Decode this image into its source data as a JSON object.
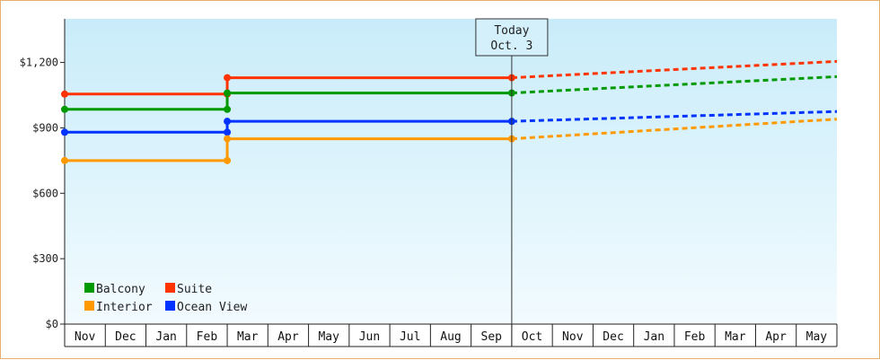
{
  "chart_data": {
    "type": "line",
    "title": "",
    "xlabel": "",
    "ylabel": "",
    "ylim": [
      0,
      1400
    ],
    "y_ticks": [
      0,
      300,
      600,
      900,
      1200
    ],
    "y_tick_labels": [
      "$0",
      "$300",
      "$600",
      "$900",
      "$1,200"
    ],
    "months": [
      "Nov",
      "Dec",
      "Jan",
      "Feb",
      "Mar",
      "Apr",
      "May",
      "Jun",
      "Jul",
      "Aug",
      "Sep",
      "Oct",
      "Nov",
      "Dec",
      "Jan",
      "Feb",
      "Mar",
      "Apr",
      "May"
    ],
    "today": {
      "line1": "Today",
      "line2": "Oct. 3",
      "month_index": 11
    },
    "grid": false,
    "legend_position": "bottom-left",
    "series": [
      {
        "name": "Suite",
        "color": "#ff3300",
        "actual": [
          [
            0,
            1055
          ],
          [
            4,
            1055
          ],
          [
            4,
            1130
          ],
          [
            11,
            1130
          ]
        ],
        "forecast": [
          [
            11,
            1130
          ],
          [
            19,
            1205
          ]
        ]
      },
      {
        "name": "Balcony",
        "color": "#009900",
        "actual": [
          [
            0,
            985
          ],
          [
            4,
            985
          ],
          [
            4,
            1060
          ],
          [
            11,
            1060
          ]
        ],
        "forecast": [
          [
            11,
            1060
          ],
          [
            19,
            1135
          ]
        ]
      },
      {
        "name": "Ocean View",
        "color": "#0033ff",
        "actual": [
          [
            0,
            880
          ],
          [
            4,
            880
          ],
          [
            4,
            930
          ],
          [
            11,
            930
          ]
        ],
        "forecast": [
          [
            11,
            930
          ],
          [
            19,
            975
          ]
        ]
      },
      {
        "name": "Interior",
        "color": "#ff9900",
        "actual": [
          [
            0,
            750
          ],
          [
            4,
            750
          ],
          [
            4,
            850
          ],
          [
            11,
            850
          ]
        ],
        "forecast": [
          [
            11,
            850
          ],
          [
            19,
            940
          ]
        ]
      }
    ],
    "legend": [
      {
        "name": "Balcony",
        "color": "#009900"
      },
      {
        "name": "Suite",
        "color": "#ff3300"
      },
      {
        "name": "Interior",
        "color": "#ff9900"
      },
      {
        "name": "Ocean View",
        "color": "#0033ff"
      }
    ]
  }
}
